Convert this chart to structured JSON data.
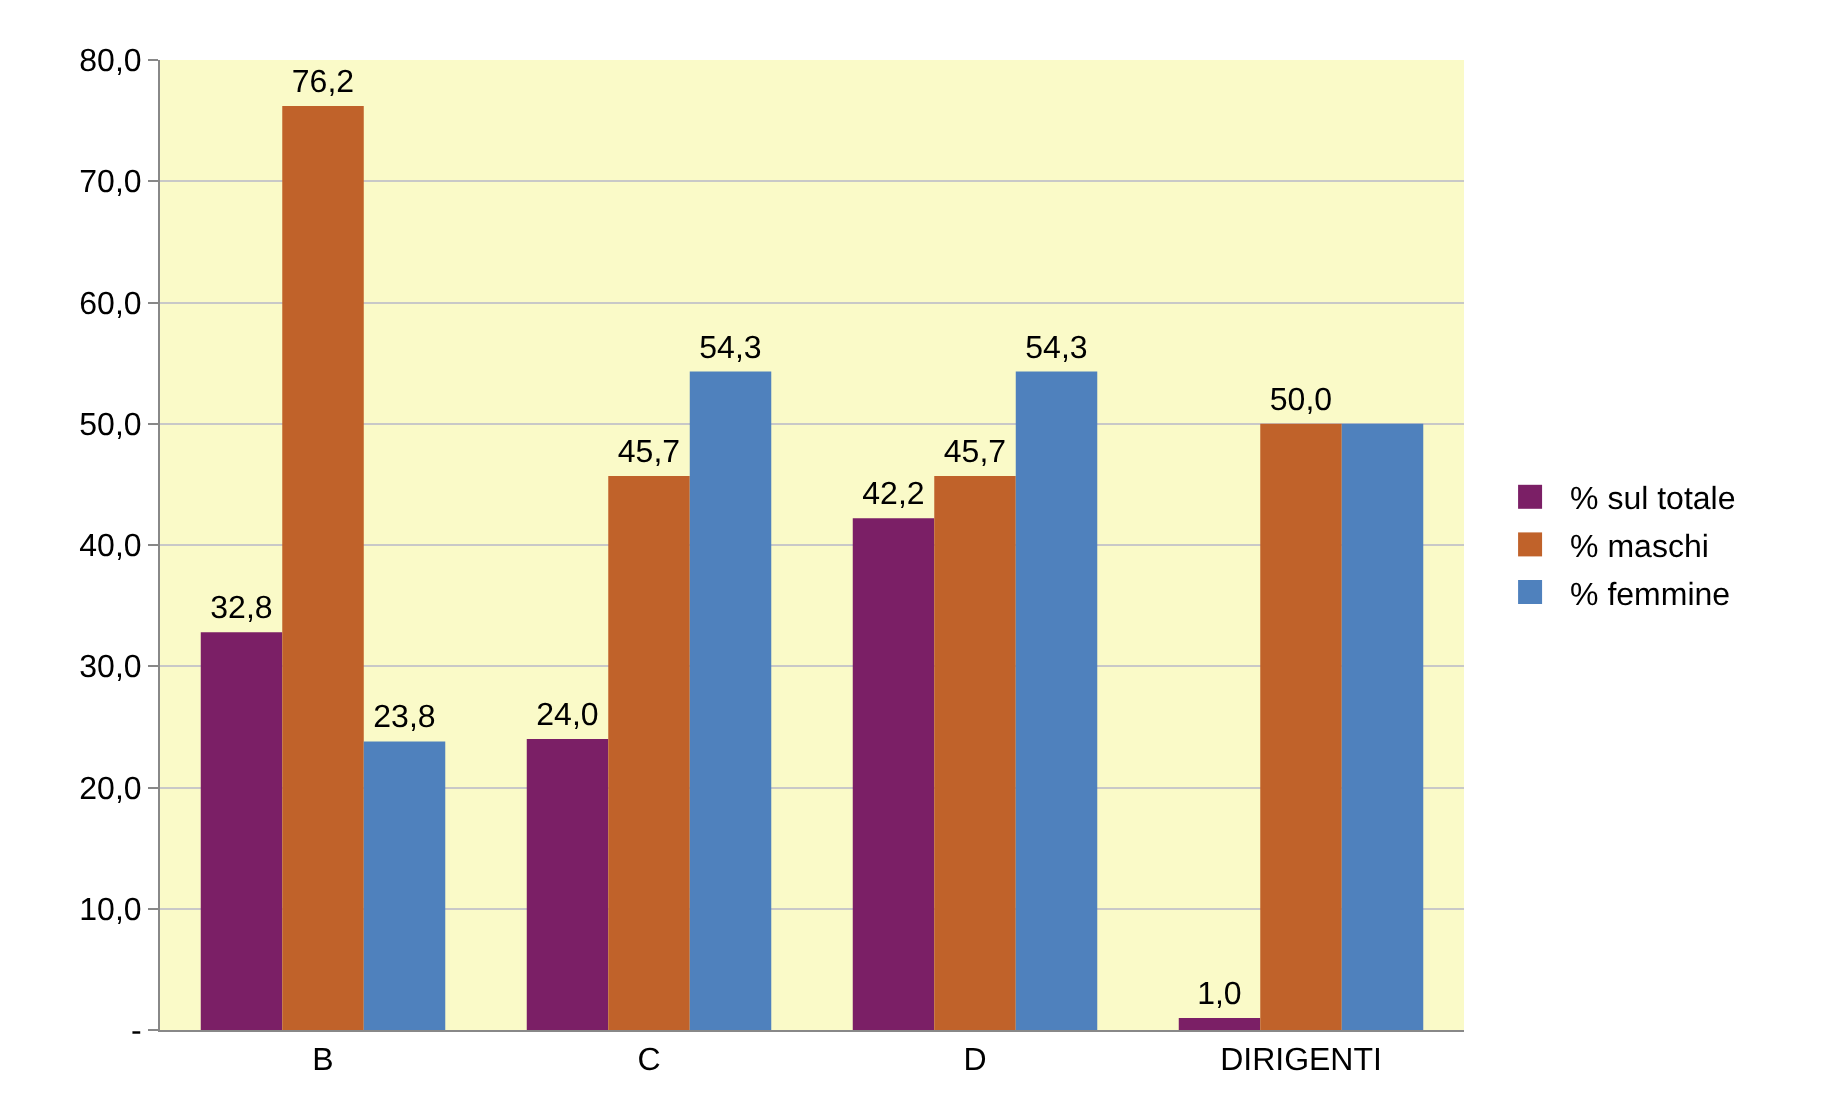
{
  "chart_data": {
    "type": "bar",
    "categories": [
      "B",
      "C",
      "D",
      "DIRIGENTI"
    ],
    "series": [
      {
        "name": "% sul totale",
        "color": "#7b1f66",
        "values": [
          32.8,
          24.0,
          42.2,
          1.0
        ],
        "value_labels": [
          "32,8",
          "24,0",
          "42,2",
          "1,0"
        ]
      },
      {
        "name": "% maschi",
        "color": "#c0622a",
        "values": [
          76.2,
          45.7,
          45.7,
          50.0
        ],
        "value_labels": [
          "76,2",
          "45,7",
          "45,7",
          "50,0"
        ]
      },
      {
        "name": "% femmine",
        "color": "#4f81bd",
        "values": [
          23.8,
          54.3,
          54.3,
          50.0
        ],
        "value_labels": [
          "23,8",
          "54,3",
          "54,3",
          null
        ]
      }
    ],
    "ylim": [
      0,
      80
    ],
    "yticks": [
      {
        "value": 0,
        "label": "-"
      },
      {
        "value": 10,
        "label": "10,0"
      },
      {
        "value": 20,
        "label": "20,0"
      },
      {
        "value": 30,
        "label": "30,0"
      },
      {
        "value": 40,
        "label": "40,0"
      },
      {
        "value": 50,
        "label": "50,0"
      },
      {
        "value": 60,
        "label": "60,0"
      },
      {
        "value": 70,
        "label": "70,0"
      },
      {
        "value": 80,
        "label": "80,0"
      }
    ],
    "grid": "y",
    "legend": "right"
  }
}
